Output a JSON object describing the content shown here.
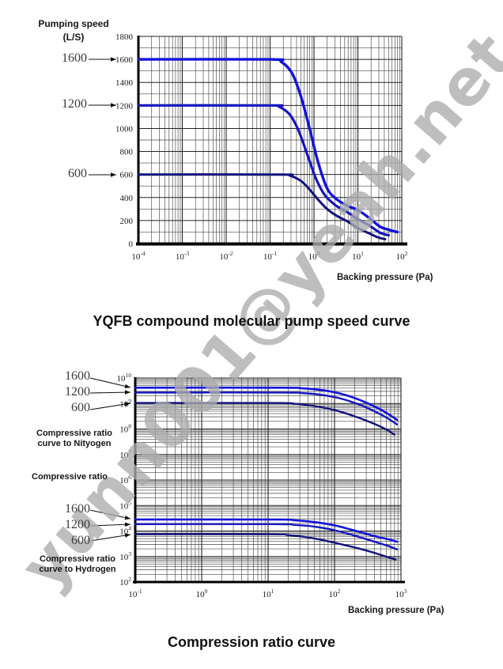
{
  "watermark": {
    "text": "yunn001@yeah.net",
    "color": "#acacac"
  },
  "chart_data": [
    {
      "type": "line",
      "title": "YQFB compound molecular pump speed curve",
      "ylabel_line1": "Pumping speed",
      "ylabel_line2": "(L/S)",
      "xlabel": "Backing pressure (Pa)",
      "x_scale": "log",
      "y_scale": "linear",
      "xlim_exp": [
        -4,
        2
      ],
      "ylim": [
        0,
        1800
      ],
      "grid": "on",
      "yticks": [
        "1800",
        "1600",
        "1400",
        "1200",
        "1000",
        "800",
        "600",
        "400",
        "200",
        "0"
      ],
      "ytick_values": [
        1800,
        1600,
        1400,
        1200,
        1000,
        800,
        600,
        400,
        200,
        0
      ],
      "y_minor_step": 100,
      "xtick_exponents": [
        "-4",
        "-3",
        "-2",
        "-1",
        "0",
        "1",
        "2"
      ],
      "series": [
        {
          "name": "1600",
          "color": "#1212dd",
          "points": [
            [
              -4,
              1600
            ],
            [
              -1.0,
              1600
            ],
            [
              -0.75,
              1580
            ],
            [
              -0.5,
              1480
            ],
            [
              -0.3,
              1280
            ],
            [
              -0.1,
              1000
            ],
            [
              0.1,
              700
            ],
            [
              0.3,
              480
            ],
            [
              0.5,
              390
            ],
            [
              0.75,
              330
            ],
            [
              1.0,
              290
            ],
            [
              1.25,
              225
            ],
            [
              1.5,
              148
            ],
            [
              1.7,
              120
            ],
            [
              1.9,
              100
            ]
          ]
        },
        {
          "name": "1200",
          "color": "#1515c0",
          "points": [
            [
              -4,
              1200
            ],
            [
              -1.0,
              1200
            ],
            [
              -0.8,
              1190
            ],
            [
              -0.55,
              1120
            ],
            [
              -0.35,
              980
            ],
            [
              -0.15,
              770
            ],
            [
              0.05,
              560
            ],
            [
              0.25,
              420
            ],
            [
              0.5,
              330
            ],
            [
              0.75,
              275
            ],
            [
              1.0,
              212
            ],
            [
              1.25,
              160
            ],
            [
              1.5,
              95
            ],
            [
              1.7,
              72
            ]
          ]
        },
        {
          "name": "600",
          "color": "#12127c",
          "points": [
            [
              -4,
              600
            ],
            [
              -0.8,
              600
            ],
            [
              -0.55,
              590
            ],
            [
              -0.3,
              545
            ],
            [
              -0.1,
              470
            ],
            [
              0.1,
              380
            ],
            [
              0.3,
              300
            ],
            [
              0.5,
              245
            ],
            [
              0.75,
              195
            ],
            [
              1.0,
              135
            ],
            [
              1.25,
              90
            ],
            [
              1.45,
              55
            ],
            [
              1.62,
              38
            ]
          ]
        }
      ]
    },
    {
      "type": "line",
      "title": "Compression ratio curve",
      "xlabel": "Backing pressure (Pa)",
      "x_scale": "log",
      "y_scale": "log",
      "xlim_exp": [
        -1,
        3
      ],
      "ylim_exp": [
        2,
        10
      ],
      "grid": "on",
      "ytick_exponents": [
        "10",
        "9",
        "8",
        "7",
        "6",
        "5",
        "4",
        "3",
        "2"
      ],
      "xtick_exponents": [
        "-1",
        "0",
        "1",
        "2",
        "3"
      ],
      "annotations": {
        "nitrogen_line1": "Compressive ratio",
        "nitrogen_line2": "curve to Nityogen",
        "mid_label": "Compressive ratio",
        "hydrogen_line1": "Compressive ratio",
        "hydrogen_line2": "curve to Hydrogen"
      },
      "series": [
        {
          "name": "1600",
          "group": "nitrogen",
          "color": "#1212dd",
          "points": [
            [
              -1,
              9.62
            ],
            [
              1.2,
              9.62
            ],
            [
              1.5,
              9.6
            ],
            [
              1.8,
              9.53
            ],
            [
              2.1,
              9.38
            ],
            [
              2.4,
              9.12
            ],
            [
              2.65,
              8.82
            ],
            [
              2.8,
              8.6
            ],
            [
              2.94,
              8.36
            ]
          ]
        },
        {
          "name": "1200",
          "group": "nitrogen",
          "color": "#1515c0",
          "points": [
            [
              -1,
              9.43
            ],
            [
              1.2,
              9.43
            ],
            [
              1.5,
              9.41
            ],
            [
              1.8,
              9.34
            ],
            [
              2.1,
              9.19
            ],
            [
              2.4,
              8.93
            ],
            [
              2.65,
              8.63
            ],
            [
              2.8,
              8.42
            ],
            [
              2.94,
              8.18
            ]
          ]
        },
        {
          "name": "600",
          "group": "nitrogen",
          "color": "#12127c",
          "points": [
            [
              -1,
              9.02
            ],
            [
              1.1,
              9.02
            ],
            [
              1.4,
              8.99
            ],
            [
              1.7,
              8.9
            ],
            [
              2.0,
              8.74
            ],
            [
              2.3,
              8.5
            ],
            [
              2.6,
              8.2
            ],
            [
              2.8,
              7.95
            ],
            [
              2.9,
              7.78
            ]
          ]
        },
        {
          "name": "1600",
          "group": "hydrogen",
          "color": "#1212dd",
          "points": [
            [
              -1,
              4.45
            ],
            [
              1.1,
              4.45
            ],
            [
              1.4,
              4.42
            ],
            [
              1.7,
              4.35
            ],
            [
              2.0,
              4.22
            ],
            [
              2.3,
              4.02
            ],
            [
              2.6,
              3.8
            ],
            [
              2.8,
              3.68
            ],
            [
              2.94,
              3.58
            ]
          ]
        },
        {
          "name": "1200",
          "group": "hydrogen",
          "color": "#1515c0",
          "points": [
            [
              -1,
              4.27
            ],
            [
              1.1,
              4.27
            ],
            [
              1.4,
              4.24
            ],
            [
              1.7,
              4.17
            ],
            [
              2.0,
              4.03
            ],
            [
              2.3,
              3.82
            ],
            [
              2.6,
              3.58
            ],
            [
              2.8,
              3.42
            ],
            [
              2.94,
              3.28
            ]
          ]
        },
        {
          "name": "600",
          "group": "hydrogen",
          "color": "#12127c",
          "points": [
            [
              -1,
              3.88
            ],
            [
              1.0,
              3.88
            ],
            [
              1.3,
              3.84
            ],
            [
              1.6,
              3.75
            ],
            [
              1.9,
              3.6
            ],
            [
              2.2,
              3.42
            ],
            [
              2.5,
              3.22
            ],
            [
              2.75,
              3.02
            ],
            [
              2.92,
              2.88
            ]
          ]
        }
      ]
    }
  ]
}
